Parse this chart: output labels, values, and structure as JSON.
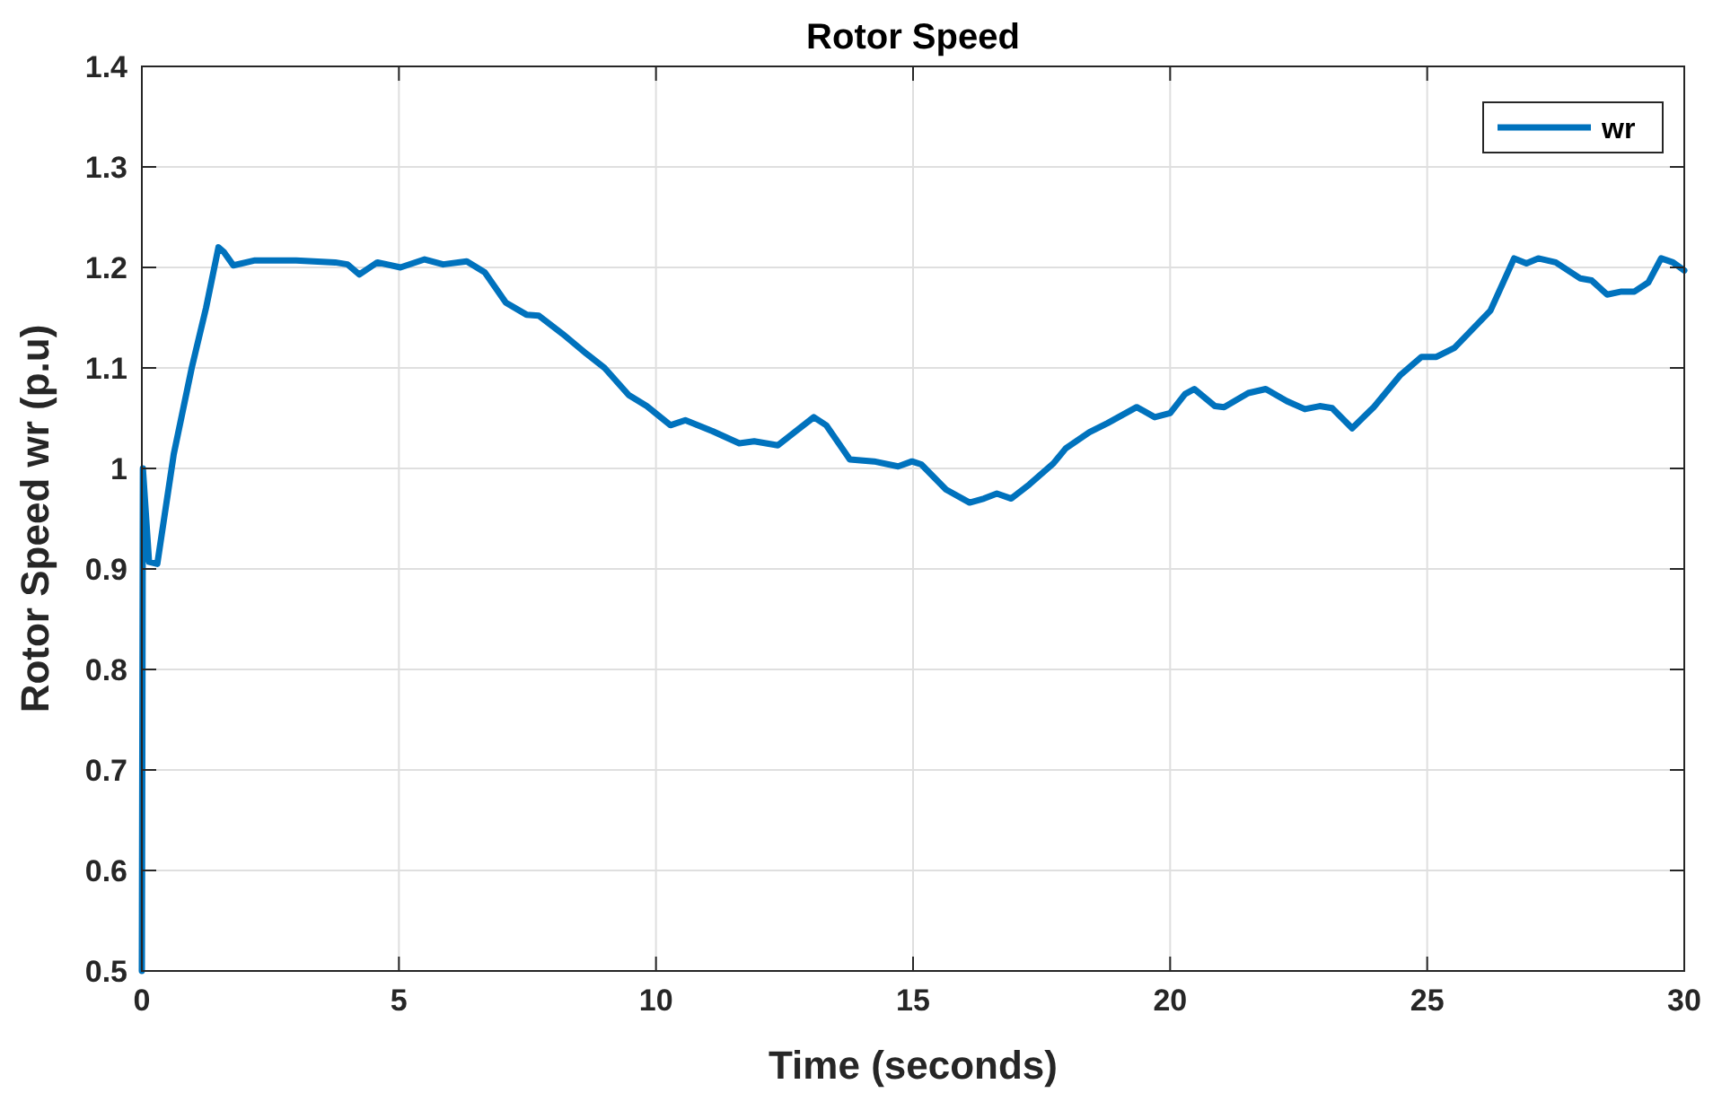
{
  "chart_data": {
    "type": "line",
    "title": "Rotor Speed",
    "xlabel": "Time (seconds)",
    "ylabel": "Rotor Speed wr (p.u)",
    "xlim": [
      0,
      30
    ],
    "ylim": [
      0.5,
      1.4
    ],
    "xticks": [
      0,
      5,
      10,
      15,
      20,
      25,
      30
    ],
    "yticks": [
      0.5,
      0.6,
      0.7,
      0.8,
      0.9,
      1,
      1.1,
      1.2,
      1.3,
      1.4
    ],
    "grid": true,
    "legend": "top right",
    "line_style": "solid",
    "marker": "none",
    "series": [
      {
        "name": "wr",
        "color": "#0072bd",
        "x": [
          0,
          0.02,
          0.14,
          0.3,
          0.62,
          0.97,
          1.25,
          1.49,
          1.6,
          1.78,
          2.2,
          3.0,
          3.76,
          4.0,
          4.23,
          4.58,
          5.03,
          5.5,
          5.86,
          6.32,
          6.67,
          7.08,
          7.48,
          7.72,
          8.18,
          8.65,
          9.0,
          9.47,
          9.82,
          10.28,
          10.57,
          11.1,
          11.62,
          11.91,
          12.37,
          12.72,
          13.07,
          13.31,
          13.77,
          14.24,
          14.71,
          14.98,
          15.16,
          15.64,
          16.1,
          16.38,
          16.63,
          16.91,
          17.26,
          17.73,
          17.97,
          18.43,
          18.78,
          19.35,
          19.7,
          20.0,
          20.29,
          20.47,
          20.87,
          21.05,
          21.52,
          21.86,
          22.27,
          22.62,
          22.91,
          23.15,
          23.54,
          23.96,
          24.48,
          24.89,
          25.18,
          25.53,
          26.23,
          26.69,
          26.93,
          27.16,
          27.5,
          27.98,
          28.2,
          28.5,
          28.78,
          29.03,
          29.3,
          29.55,
          29.78,
          30
        ],
        "values": [
          0.5,
          1.0,
          0.907,
          0.905,
          1.014,
          1.1,
          1.16,
          1.22,
          1.215,
          1.202,
          1.207,
          1.207,
          1.205,
          1.203,
          1.193,
          1.205,
          1.2,
          1.208,
          1.203,
          1.206,
          1.195,
          1.165,
          1.153,
          1.152,
          1.134,
          1.114,
          1.1,
          1.073,
          1.062,
          1.043,
          1.048,
          1.037,
          1.025,
          1.027,
          1.023,
          1.037,
          1.051,
          1.043,
          1.009,
          1.007,
          1.002,
          1.007,
          1.004,
          0.979,
          0.966,
          0.97,
          0.975,
          0.97,
          0.984,
          1.005,
          1.02,
          1.036,
          1.045,
          1.061,
          1.051,
          1.055,
          1.074,
          1.079,
          1.062,
          1.061,
          1.075,
          1.079,
          1.067,
          1.059,
          1.062,
          1.06,
          1.04,
          1.061,
          1.093,
          1.111,
          1.111,
          1.12,
          1.157,
          1.209,
          1.204,
          1.209,
          1.205,
          1.189,
          1.187,
          1.173,
          1.176,
          1.176,
          1.185,
          1.209,
          1.205,
          1.197
        ]
      }
    ]
  }
}
